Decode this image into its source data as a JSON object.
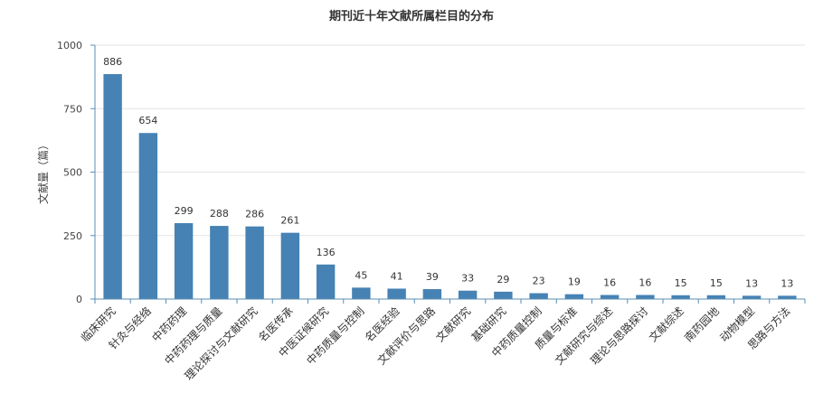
{
  "chart_data": {
    "type": "bar",
    "title": "期刊近十年文献所属栏目的分布",
    "xlabel": "",
    "ylabel": "文献量（篇）",
    "ylim": [
      0,
      1000
    ],
    "yticks": [
      0,
      250,
      500,
      750,
      1000
    ],
    "grid": true,
    "color": "#4682b4",
    "categories": [
      "临床研究",
      "针灸与经络",
      "中药药理",
      "中药药理与质量",
      "理论探讨与文献研究",
      "名医传承",
      "中医证候研究",
      "中药质量与控制",
      "名医经验",
      "文献评价与思路",
      "文献研究",
      "基础研究",
      "中药质量控制",
      "质量与标准",
      "文献研究与综述",
      "理论与思路探讨",
      "文献综述",
      "南药园地",
      "动物模型",
      "思路与方法"
    ],
    "values": [
      886,
      654,
      299,
      288,
      286,
      261,
      136,
      45,
      41,
      39,
      33,
      29,
      23,
      19,
      16,
      16,
      15,
      15,
      13,
      13
    ]
  }
}
